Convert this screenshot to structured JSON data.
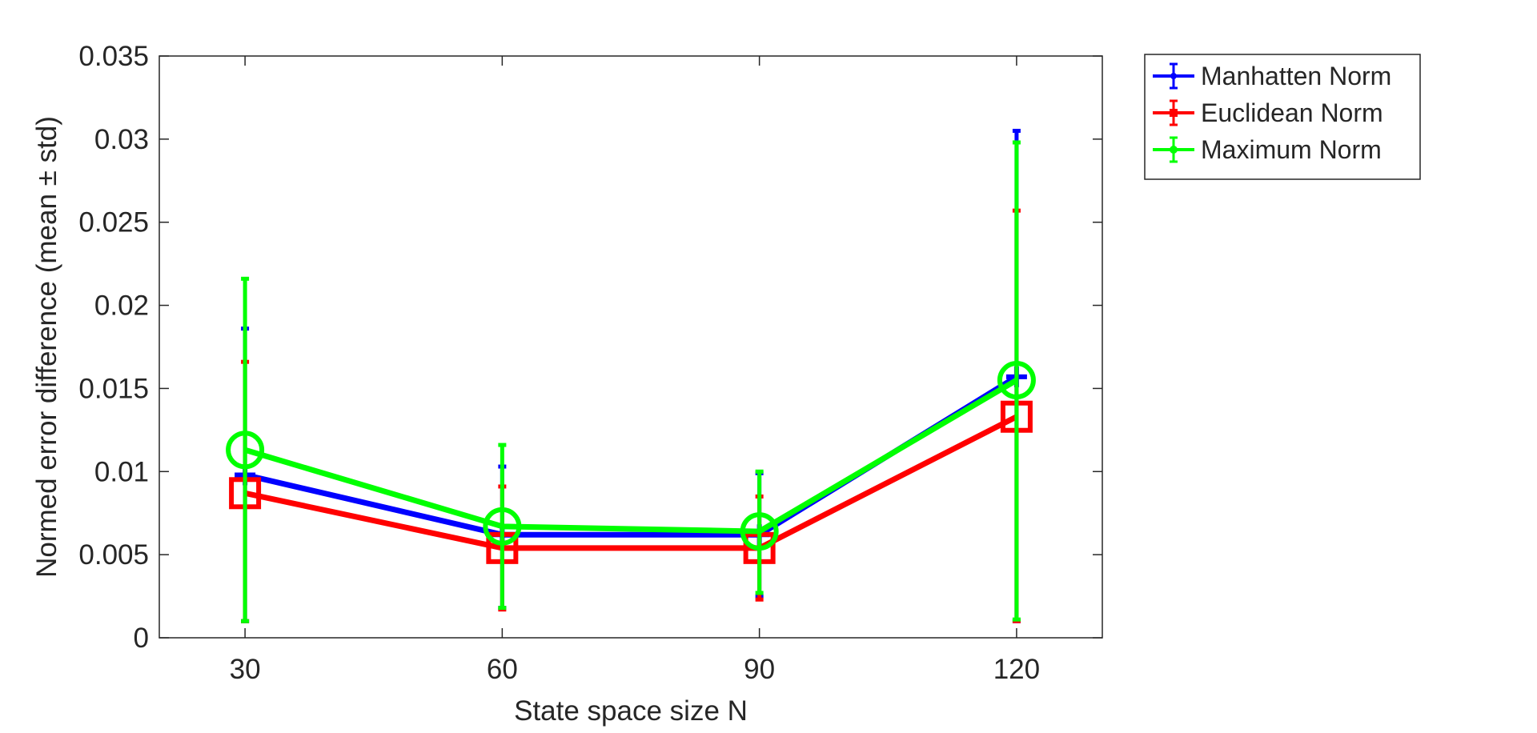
{
  "chart_data": {
    "type": "line",
    "title": "",
    "xlabel": "State space size N",
    "ylabel": "Normed error difference (mean ± std)",
    "x": [
      30,
      60,
      90,
      120
    ],
    "xlim": [
      20,
      130
    ],
    "ylim": [
      0,
      0.035
    ],
    "xticks": [
      30,
      60,
      90,
      120
    ],
    "xtick_labels": [
      "30",
      "60",
      "90",
      "120"
    ],
    "yticks": [
      0,
      0.005,
      0.01,
      0.015,
      0.02,
      0.025,
      0.03,
      0.035
    ],
    "ytick_labels": [
      "0",
      "0.005",
      "0.01",
      "0.015",
      "0.02",
      "0.025",
      "0.03",
      "0.035"
    ],
    "grid": false,
    "legend_position": "outside-top-right",
    "series": [
      {
        "name": "Manhatten Norm",
        "color": "#0000ff",
        "marker": "plus",
        "values": [
          0.0098,
          0.0062,
          0.0062,
          0.0157
        ],
        "err_low": [
          0.001,
          0.0018,
          0.0025,
          0.001
        ],
        "err_high": [
          0.0186,
          0.0103,
          0.0099,
          0.0305
        ]
      },
      {
        "name": "Euclidean Norm",
        "color": "#ff0000",
        "marker": "square",
        "values": [
          0.0087,
          0.0054,
          0.0054,
          0.0133
        ],
        "err_low": [
          0.001,
          0.0017,
          0.0023,
          0.001
        ],
        "err_high": [
          0.0166,
          0.0091,
          0.0085,
          0.0257
        ]
      },
      {
        "name": "Maximum Norm",
        "color": "#00ff00",
        "marker": "circle",
        "values": [
          0.0113,
          0.0067,
          0.0064,
          0.0155
        ],
        "err_low": [
          0.001,
          0.0018,
          0.0027,
          0.0011
        ],
        "err_high": [
          0.0216,
          0.0116,
          0.01,
          0.0298
        ]
      }
    ]
  }
}
